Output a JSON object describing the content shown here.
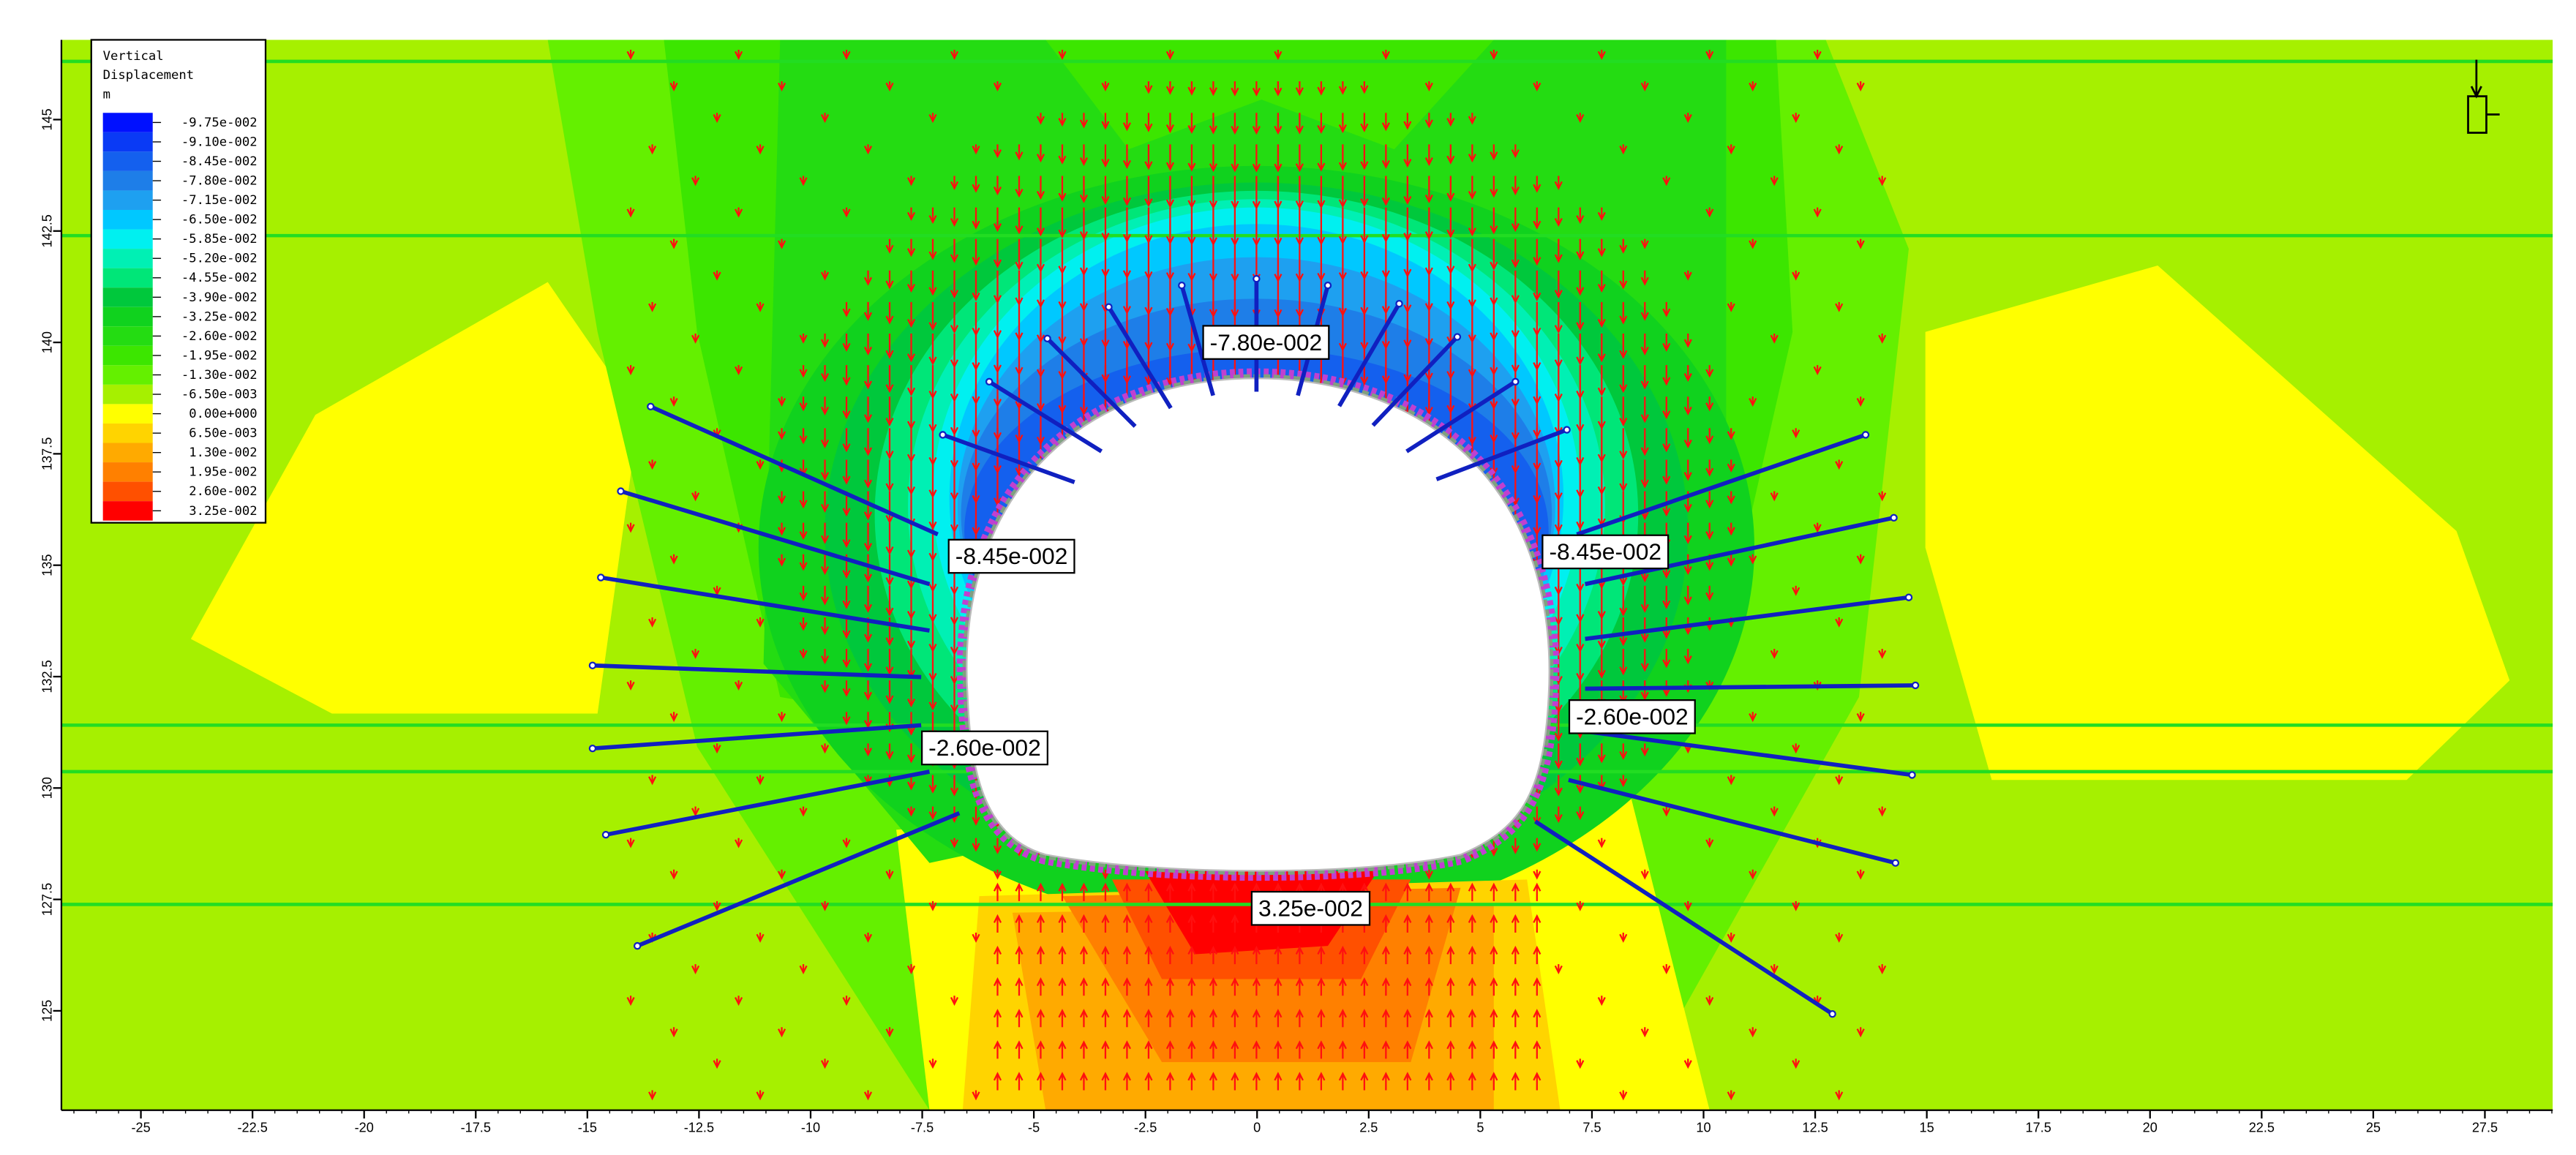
{
  "chart_data": {
    "type": "contour",
    "legend_title": [
      "Vertical",
      "Displacement",
      "m"
    ],
    "levels": [
      {
        "value": -0.0975,
        "label": "-9.75e-002",
        "color": "#0010ff"
      },
      {
        "value": -0.091,
        "label": "-9.10e-002",
        "color": "#0a3af5"
      },
      {
        "value": -0.0845,
        "label": "-8.45e-002",
        "color": "#1460ee"
      },
      {
        "value": -0.078,
        "label": "-7.80e-002",
        "color": "#1e7ee8"
      },
      {
        "value": -0.0715,
        "label": "-7.15e-002",
        "color": "#1ea0f0"
      },
      {
        "value": -0.065,
        "label": "-6.50e-002",
        "color": "#00c8ff"
      },
      {
        "value": -0.0585,
        "label": "-5.85e-002",
        "color": "#00f0f0"
      },
      {
        "value": -0.052,
        "label": "-5.20e-002",
        "color": "#00f0b4"
      },
      {
        "value": -0.0455,
        "label": "-4.55e-002",
        "color": "#00e678"
      },
      {
        "value": -0.039,
        "label": "-3.90e-002",
        "color": "#00c83c"
      },
      {
        "value": -0.0325,
        "label": "-3.25e-002",
        "color": "#10d21e"
      },
      {
        "value": -0.026,
        "label": "-2.60e-002",
        "color": "#24dc12"
      },
      {
        "value": -0.0195,
        "label": "-1.95e-002",
        "color": "#3ce600"
      },
      {
        "value": -0.013,
        "label": "-1.30e-002",
        "color": "#64f000"
      },
      {
        "value": -0.0065,
        "label": "-6.50e-003",
        "color": "#a6f000"
      },
      {
        "value": 0,
        "label": "0.00e+000",
        "color": "#ffff00"
      },
      {
        "value": 0.0065,
        "label": "6.50e-003",
        "color": "#ffd400"
      },
      {
        "value": 0.013,
        "label": "1.30e-002",
        "color": "#ffaa00"
      },
      {
        "value": 0.0195,
        "label": "1.95e-002",
        "color": "#ff8000"
      },
      {
        "value": 0.026,
        "label": "2.60e-002",
        "color": "#ff5000"
      },
      {
        "value": 0.0325,
        "label": "3.25e-002",
        "color": "#ff0000"
      }
    ],
    "annotations": [
      {
        "value": -0.078,
        "label": "-7.80e-002",
        "x": 0.2,
        "y": 140
      },
      {
        "value": -0.0845,
        "label": "-8.45e-002",
        "x": -5.5,
        "y": 135.2
      },
      {
        "value": -0.0845,
        "label": "-8.45e-002",
        "x": 7.8,
        "y": 135.3
      },
      {
        "value": -0.026,
        "label": "-2.60e-002",
        "x": -6.1,
        "y": 130.9
      },
      {
        "value": -0.026,
        "label": "-2.60e-002",
        "x": 8.4,
        "y": 131.6
      },
      {
        "value": 0.0325,
        "label": "3.25e-002",
        "x": 1.2,
        "y": 127.3
      }
    ],
    "xlim": [
      -26.78,
      29.02
    ],
    "ylim": [
      122.77,
      146.79
    ],
    "xticks": [
      -25,
      -22.5,
      -20,
      -17.5,
      -15,
      -12.5,
      -10,
      -7.5,
      -5,
      -2.5,
      0,
      2.5,
      5,
      7.5,
      10,
      12.5,
      15,
      17.5,
      20,
      22.5,
      25,
      27.5
    ],
    "yticks": [
      125,
      127.5,
      130,
      132.5,
      135,
      137.5,
      140,
      142.5,
      145
    ]
  }
}
